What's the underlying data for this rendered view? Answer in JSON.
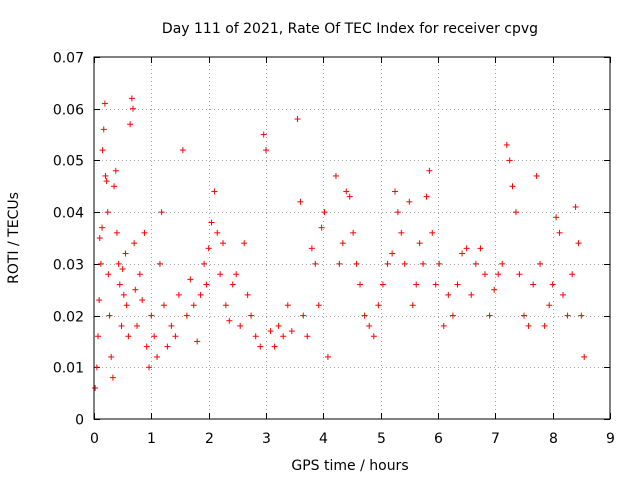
{
  "chart_data": {
    "type": "scatter",
    "title": "Day 111 of 2021, Rate Of TEC Index for receiver cpvg",
    "xlabel": "GPS time / hours",
    "ylabel": "ROTI / TECUs",
    "xlim": [
      0,
      9
    ],
    "ylim": [
      0,
      0.07
    ],
    "grid": true,
    "marker": "+",
    "xticks": [
      {
        "value": 0,
        "label": "0"
      },
      {
        "value": 1,
        "label": "1"
      },
      {
        "value": 2,
        "label": "2"
      },
      {
        "value": 3,
        "label": "3"
      },
      {
        "value": 4,
        "label": "4"
      },
      {
        "value": 5,
        "label": "5"
      },
      {
        "value": 6,
        "label": "6"
      },
      {
        "value": 7,
        "label": "7"
      },
      {
        "value": 8,
        "label": "8"
      },
      {
        "value": 9,
        "label": "9"
      }
    ],
    "yticks": [
      {
        "value": 0,
        "label": "0"
      },
      {
        "value": 0.01,
        "label": "0.01"
      },
      {
        "value": 0.02,
        "label": "0.02"
      },
      {
        "value": 0.03,
        "label": "0.03"
      },
      {
        "value": 0.04,
        "label": "0.04"
      },
      {
        "value": 0.05,
        "label": "0.05"
      },
      {
        "value": 0.06,
        "label": "0.06"
      },
      {
        "value": 0.07,
        "label": "0.07"
      }
    ],
    "series": [
      {
        "name": "ROTI",
        "color": "#ff0000",
        "points": [
          [
            0.02,
            0.006
          ],
          [
            0.05,
            0.01
          ],
          [
            0.07,
            0.016
          ],
          [
            0.09,
            0.023
          ],
          [
            0.1,
            0.035
          ],
          [
            0.12,
            0.03
          ],
          [
            0.14,
            0.037
          ],
          [
            0.15,
            0.052
          ],
          [
            0.17,
            0.056
          ],
          [
            0.19,
            0.061
          ],
          [
            0.2,
            0.047
          ],
          [
            0.22,
            0.046
          ],
          [
            0.24,
            0.04
          ],
          [
            0.25,
            0.028
          ],
          [
            0.27,
            0.02
          ],
          [
            0.3,
            0.012
          ],
          [
            0.33,
            0.008
          ],
          [
            0.35,
            0.045
          ],
          [
            0.38,
            0.048
          ],
          [
            0.4,
            0.036
          ],
          [
            0.43,
            0.03
          ],
          [
            0.45,
            0.026
          ],
          [
            0.48,
            0.018
          ],
          [
            0.5,
            0.029
          ],
          [
            0.52,
            0.024
          ],
          [
            0.55,
            0.032
          ],
          [
            0.57,
            0.022
          ],
          [
            0.6,
            0.016
          ],
          [
            0.63,
            0.057
          ],
          [
            0.66,
            0.062
          ],
          [
            0.68,
            0.06
          ],
          [
            0.7,
            0.034
          ],
          [
            0.72,
            0.025
          ],
          [
            0.75,
            0.018
          ],
          [
            0.8,
            0.028
          ],
          [
            0.84,
            0.023
          ],
          [
            0.88,
            0.036
          ],
          [
            0.92,
            0.014
          ],
          [
            0.96,
            0.01
          ],
          [
            1.0,
            0.02
          ],
          [
            1.05,
            0.016
          ],
          [
            1.1,
            0.012
          ],
          [
            1.15,
            0.03
          ],
          [
            1.18,
            0.04
          ],
          [
            1.22,
            0.022
          ],
          [
            1.28,
            0.014
          ],
          [
            1.35,
            0.018
          ],
          [
            1.42,
            0.016
          ],
          [
            1.48,
            0.024
          ],
          [
            1.55,
            0.052
          ],
          [
            1.62,
            0.02
          ],
          [
            1.68,
            0.027
          ],
          [
            1.74,
            0.022
          ],
          [
            1.8,
            0.015
          ],
          [
            1.86,
            0.024
          ],
          [
            1.92,
            0.03
          ],
          [
            1.96,
            0.026
          ],
          [
            2.0,
            0.033
          ],
          [
            2.05,
            0.038
          ],
          [
            2.1,
            0.044
          ],
          [
            2.15,
            0.036
          ],
          [
            2.2,
            0.028
          ],
          [
            2.25,
            0.034
          ],
          [
            2.3,
            0.022
          ],
          [
            2.36,
            0.019
          ],
          [
            2.42,
            0.026
          ],
          [
            2.48,
            0.028
          ],
          [
            2.55,
            0.018
          ],
          [
            2.62,
            0.034
          ],
          [
            2.68,
            0.024
          ],
          [
            2.74,
            0.02
          ],
          [
            2.82,
            0.016
          ],
          [
            2.9,
            0.014
          ],
          [
            2.96,
            0.055
          ],
          [
            3.0,
            0.052
          ],
          [
            3.08,
            0.017
          ],
          [
            3.15,
            0.014
          ],
          [
            3.22,
            0.018
          ],
          [
            3.3,
            0.016
          ],
          [
            3.38,
            0.022
          ],
          [
            3.45,
            0.017
          ],
          [
            3.55,
            0.058
          ],
          [
            3.6,
            0.042
          ],
          [
            3.65,
            0.02
          ],
          [
            3.72,
            0.016
          ],
          [
            3.8,
            0.033
          ],
          [
            3.86,
            0.03
          ],
          [
            3.92,
            0.022
          ],
          [
            3.97,
            0.037
          ],
          [
            4.02,
            0.04
          ],
          [
            4.08,
            0.012
          ],
          [
            4.22,
            0.047
          ],
          [
            4.28,
            0.03
          ],
          [
            4.34,
            0.034
          ],
          [
            4.4,
            0.044
          ],
          [
            4.46,
            0.043
          ],
          [
            4.52,
            0.036
          ],
          [
            4.58,
            0.03
          ],
          [
            4.64,
            0.026
          ],
          [
            4.72,
            0.02
          ],
          [
            4.8,
            0.018
          ],
          [
            4.88,
            0.016
          ],
          [
            4.96,
            0.022
          ],
          [
            5.04,
            0.026
          ],
          [
            5.12,
            0.03
          ],
          [
            5.2,
            0.032
          ],
          [
            5.25,
            0.044
          ],
          [
            5.3,
            0.04
          ],
          [
            5.36,
            0.036
          ],
          [
            5.42,
            0.03
          ],
          [
            5.5,
            0.042
          ],
          [
            5.56,
            0.022
          ],
          [
            5.62,
            0.026
          ],
          [
            5.68,
            0.034
          ],
          [
            5.74,
            0.03
          ],
          [
            5.8,
            0.043
          ],
          [
            5.85,
            0.048
          ],
          [
            5.9,
            0.036
          ],
          [
            5.96,
            0.026
          ],
          [
            6.02,
            0.03
          ],
          [
            6.1,
            0.018
          ],
          [
            6.18,
            0.024
          ],
          [
            6.26,
            0.02
          ],
          [
            6.34,
            0.026
          ],
          [
            6.42,
            0.032
          ],
          [
            6.5,
            0.033
          ],
          [
            6.58,
            0.024
          ],
          [
            6.66,
            0.03
          ],
          [
            6.74,
            0.033
          ],
          [
            6.82,
            0.028
          ],
          [
            6.9,
            0.02
          ],
          [
            6.98,
            0.025
          ],
          [
            7.05,
            0.028
          ],
          [
            7.12,
            0.03
          ],
          [
            7.2,
            0.053
          ],
          [
            7.25,
            0.05
          ],
          [
            7.3,
            0.045
          ],
          [
            7.36,
            0.04
          ],
          [
            7.42,
            0.028
          ],
          [
            7.5,
            0.02
          ],
          [
            7.58,
            0.018
          ],
          [
            7.66,
            0.026
          ],
          [
            7.72,
            0.047
          ],
          [
            7.78,
            0.03
          ],
          [
            7.86,
            0.018
          ],
          [
            7.94,
            0.022
          ],
          [
            8.0,
            0.026
          ],
          [
            8.06,
            0.039
          ],
          [
            8.12,
            0.036
          ],
          [
            8.18,
            0.024
          ],
          [
            8.26,
            0.02
          ],
          [
            8.34,
            0.028
          ],
          [
            8.4,
            0.041
          ],
          [
            8.45,
            0.034
          ],
          [
            8.5,
            0.02
          ],
          [
            8.55,
            0.012
          ]
        ]
      }
    ]
  }
}
